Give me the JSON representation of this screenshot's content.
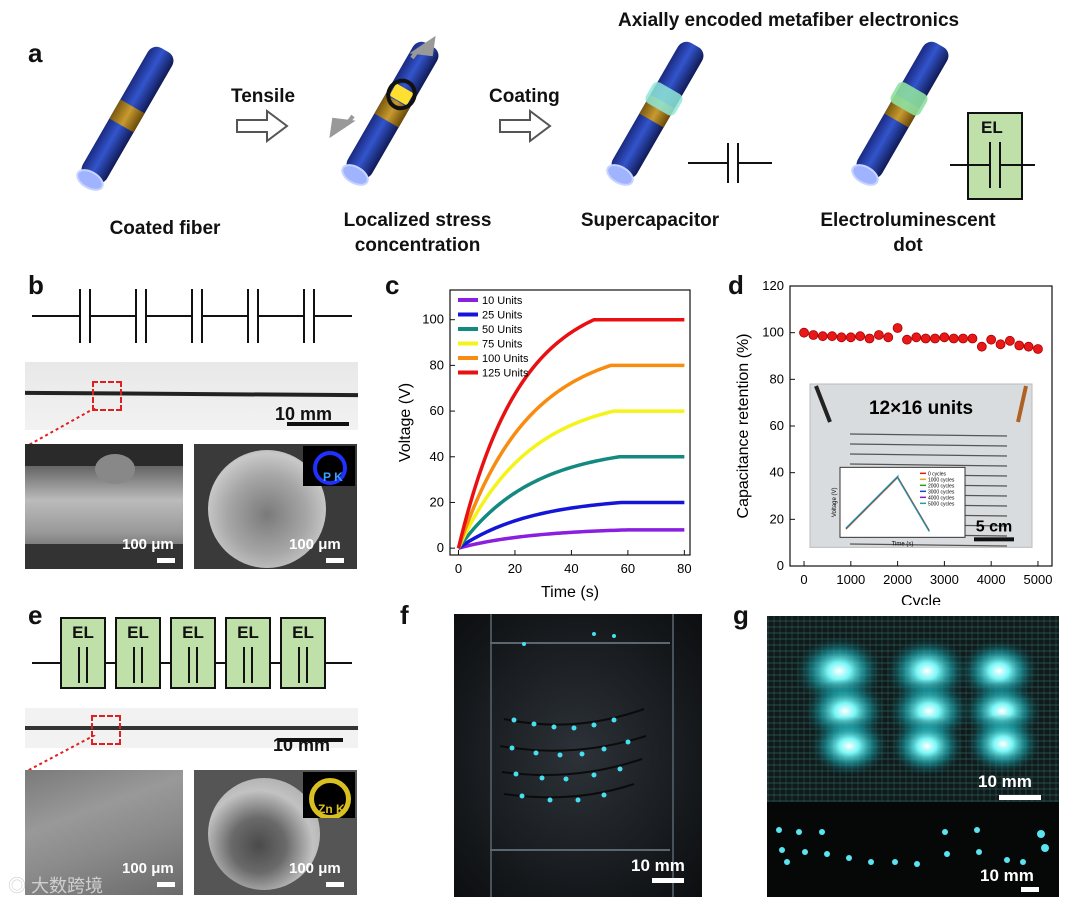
{
  "panel_a": {
    "label": "a",
    "header": "Axially encoded metafiber electronics",
    "arrow1": "Tensile",
    "arrow2": "Coating",
    "captions": [
      "Coated fiber",
      "Localized stress\nconcentration",
      "Supercapacitor",
      "Electroluminescent\ndot"
    ],
    "el_box": "EL"
  },
  "panel_b": {
    "label": "b",
    "scale_main": "10 mm",
    "scale_sem1": "100 μm",
    "scale_sem2": "100 μm",
    "inset_text": "P K"
  },
  "panel_c": {
    "label": "c",
    "chart_data": {
      "type": "line",
      "title": "",
      "xlabel": "Time (s)",
      "ylabel": "Voltage (V)",
      "xlim": [
        -3,
        82
      ],
      "ylim": [
        -3,
        113
      ],
      "xticks": [
        0,
        20,
        40,
        60,
        80
      ],
      "yticks": [
        0,
        20,
        40,
        60,
        80,
        100
      ],
      "series": [
        {
          "name": "10 Units",
          "color": "#8a1fe0",
          "plateau": 8,
          "t_end": 60
        },
        {
          "name": "25 Units",
          "color": "#1515d8",
          "plateau": 20,
          "t_end": 58
        },
        {
          "name": "50 Units",
          "color": "#138a80",
          "plateau": 40,
          "t_end": 57
        },
        {
          "name": "75 Units",
          "color": "#f4f41a",
          "plateau": 60,
          "t_end": 55
        },
        {
          "name": "100 Units",
          "color": "#f78c10",
          "plateau": 80,
          "t_end": 54
        },
        {
          "name": "125 Units",
          "color": "#e81010",
          "plateau": 100,
          "t_end": 48
        }
      ]
    }
  },
  "panel_d": {
    "label": "d",
    "chart_data": {
      "type": "scatter",
      "xlabel": "Cycle",
      "ylabel": "Capacitance retention (%)",
      "xlim": [
        -300,
        5300
      ],
      "ylim": [
        0,
        120
      ],
      "xticks": [
        0,
        1000,
        2000,
        3000,
        4000,
        5000
      ],
      "yticks": [
        0,
        20,
        40,
        60,
        80,
        100,
        120
      ],
      "x": [
        0,
        200,
        400,
        600,
        800,
        1000,
        1200,
        1400,
        1600,
        1800,
        2000,
        2200,
        2400,
        2600,
        2800,
        3000,
        3200,
        3400,
        3600,
        3800,
        4000,
        4200,
        4400,
        4600,
        4800,
        5000
      ],
      "y": [
        100,
        99,
        98.5,
        98.5,
        98,
        98,
        98.5,
        97.5,
        99,
        98,
        102,
        97,
        98,
        97.5,
        97.5,
        98,
        97.5,
        97.5,
        97.5,
        94,
        97,
        95,
        96.5,
        94.5,
        94,
        93
      ],
      "marker_color": "#e81818"
    },
    "photo_label": "12×16 units",
    "scale": "5 cm",
    "inset": {
      "xlabel": "Time (s)",
      "ylabel": "Voltage (V)",
      "legend": [
        "0 cycles",
        "1000 cycles",
        "2000 cycles",
        "3000 cycles",
        "4000 cycles",
        "5000 cycles"
      ],
      "colors": [
        "#e81818",
        "#f0a020",
        "#20a020",
        "#2040e0",
        "#8020c0",
        "#20a0a0"
      ]
    }
  },
  "panel_e": {
    "label": "e",
    "el_boxes": [
      "EL",
      "EL",
      "EL",
      "EL",
      "EL"
    ],
    "scale_main": "10 mm",
    "scale_sem1": "100 μm",
    "scale_sem2": "100 μm",
    "inset_text": "Zn K"
  },
  "panel_f": {
    "label": "f",
    "scale": "10 mm"
  },
  "panel_g": {
    "label": "g",
    "scale_top": "10 mm",
    "scale_bottom": "10 mm"
  },
  "watermark": "大数跨境"
}
